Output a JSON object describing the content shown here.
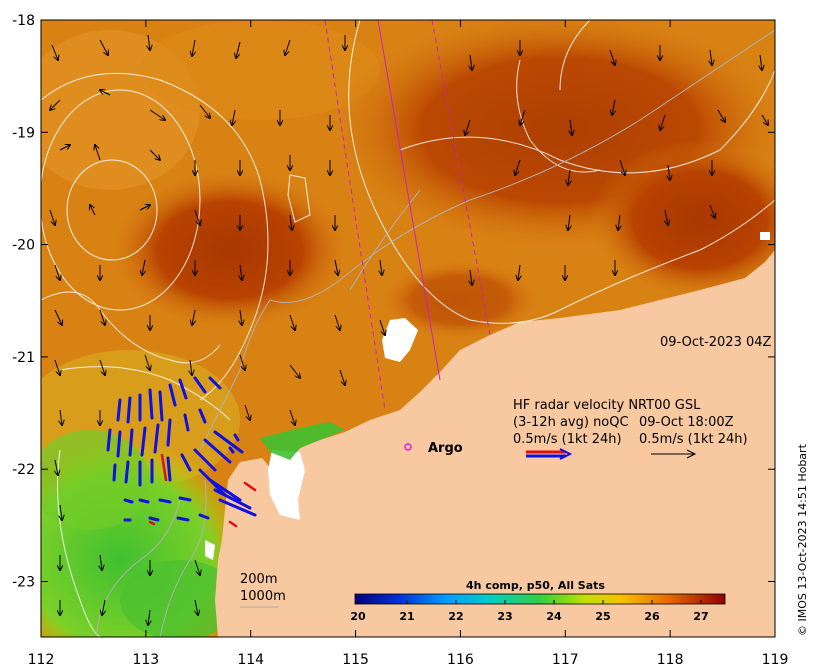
{
  "axes": {
    "x_ticks": [
      "112",
      "113",
      "114",
      "115",
      "116",
      "117",
      "118",
      "119"
    ],
    "y_ticks": [
      "-18",
      "-19",
      "-20",
      "-21",
      "-22",
      "-23"
    ]
  },
  "annotations": {
    "date": "09-Oct-2023 04Z",
    "hf_title": "HF radar velocity  NRT00 GSL",
    "hf_avg": "(3-12h avg) noQC",
    "hf_date": "09-Oct 18:00Z",
    "scale_left": "0.5m/s (1kt 24h)",
    "scale_right": "0.5m/s (1kt 24h)",
    "argo": "Argo",
    "iso200": "200m",
    "iso1000": "1000m"
  },
  "colorbar": {
    "title": "4h comp, p50, All Sats",
    "ticks": [
      "20",
      "21",
      "22",
      "23",
      "24",
      "25",
      "26",
      "27"
    ]
  },
  "credit": "© IMOS 13-Oct-2023 14:51 Hobart",
  "colors": {
    "land": "#f8c9a0",
    "warm": "#b83c00",
    "mid": "#d9780a",
    "cool": "#5ec21d",
    "radar": "#1010e0",
    "radar_red": "#e01010",
    "track": "#d020c0"
  }
}
